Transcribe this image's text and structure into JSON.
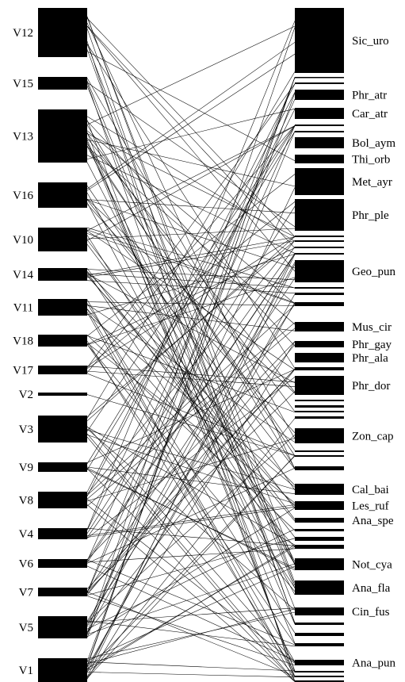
{
  "chart_data": {
    "type": "bipartite",
    "left_nodes": [
      "V12",
      "V15",
      "V13",
      "V16",
      "V10",
      "V14",
      "V11",
      "V18",
      "V17",
      "V2",
      "V3",
      "V9",
      "V8",
      "V4",
      "V6",
      "V7",
      "V5",
      "V1"
    ],
    "right_labels": [
      "Sic_uro",
      "Phr_atr",
      "Car_atr",
      "Bol_aym",
      "Thi_orb",
      "Met_ayr",
      "Phr_ple",
      "Geo_pun",
      "Mus_cir",
      "Phr_gay",
      "Phr_ala",
      "Phr_dor",
      "Zon_cap",
      "Cal_bai",
      "Les_ruf",
      "Ana_spe",
      "Not_cya",
      "Ana_fla",
      "Cin_fus",
      "Ana_pun"
    ]
  }
}
